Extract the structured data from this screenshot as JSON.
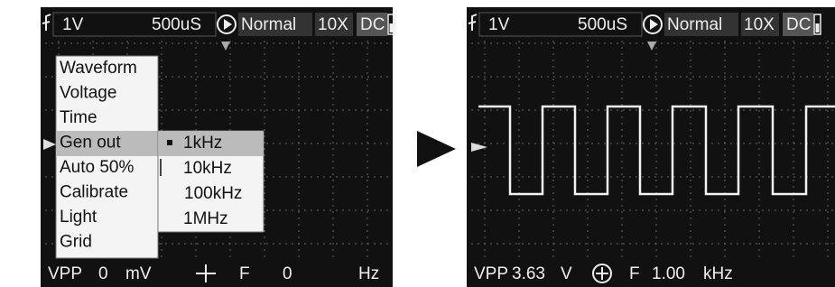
{
  "screens": [
    {
      "header": {
        "volts": "1V",
        "timebase": "500uS",
        "mode": "Normal",
        "probe": "10X",
        "coupling": "DC"
      },
      "menu": {
        "items": [
          "Waveform",
          "Voltage",
          "Time",
          "Gen out",
          "Auto 50%",
          "Calibrate",
          "Light",
          "Grid"
        ],
        "submenu": [
          "1kHz",
          "10kHz",
          "100kHz",
          "1MHz"
        ]
      },
      "footer": {
        "vpp_label": "VPP",
        "vpp_value": "0",
        "vpp_unit": "mV",
        "f_label": "F",
        "f_value": "0",
        "f_unit": "Hz"
      }
    },
    {
      "header": {
        "volts": "1V",
        "timebase": "500uS",
        "mode": "Normal",
        "probe": "10X",
        "coupling": "DC"
      },
      "footer": {
        "vpp_label": "VPP",
        "vpp_value": "3.63",
        "vpp_unit": "V",
        "f_label": "F",
        "f_value": "1.00",
        "f_unit": "kHz"
      }
    }
  ]
}
